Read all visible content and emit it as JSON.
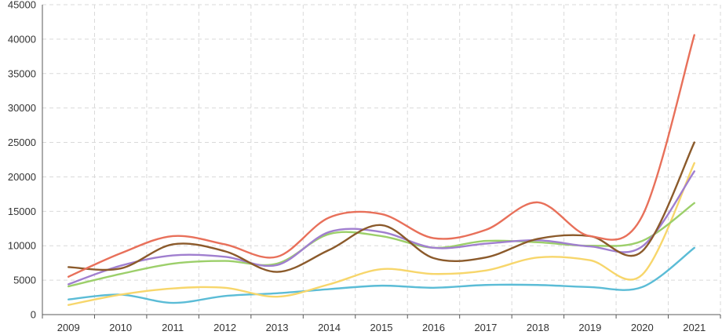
{
  "chart_data": {
    "type": "line",
    "title": "",
    "xlabel": "",
    "ylabel": "",
    "ylim": [
      0,
      45000
    ],
    "y_ticks": [
      0,
      5000,
      10000,
      15000,
      20000,
      25000,
      30000,
      35000,
      40000,
      45000
    ],
    "y_tick_labels": [
      "0",
      "5000",
      "10000",
      "15000",
      "20000",
      "25000",
      "30000",
      "35000",
      "40000",
      "45000"
    ],
    "categories": [
      "2009",
      "2010",
      "2011",
      "2012",
      "2013",
      "2014",
      "2015",
      "2016",
      "2017",
      "2018",
      "2019",
      "2020",
      "2021"
    ],
    "grid": true,
    "legend": "none",
    "series": [
      {
        "name": "orange-red",
        "color": "#e8705a",
        "values": [
          5500,
          8900,
          11400,
          10200,
          8400,
          14100,
          14600,
          11100,
          12300,
          16300,
          11400,
          14300,
          40600
        ]
      },
      {
        "name": "brown",
        "color": "#8b5a2b",
        "values": [
          6900,
          6700,
          10200,
          9200,
          6200,
          9400,
          13000,
          8200,
          8300,
          11000,
          11400,
          9200,
          25000
        ]
      },
      {
        "name": "purple",
        "color": "#a07fcf",
        "values": [
          4400,
          7100,
          8600,
          8400,
          7200,
          12000,
          12000,
          9700,
          10300,
          10800,
          9900,
          9900,
          20800
        ]
      },
      {
        "name": "green",
        "color": "#9ccf6a",
        "values": [
          4100,
          5900,
          7400,
          7800,
          7400,
          11700,
          11400,
          9700,
          10700,
          10500,
          10000,
          10700,
          16200
        ]
      },
      {
        "name": "yellow",
        "color": "#f7d66b",
        "values": [
          1400,
          2900,
          3800,
          3900,
          2600,
          4400,
          6600,
          5900,
          6400,
          8300,
          7900,
          5800,
          22000
        ]
      },
      {
        "name": "blue",
        "color": "#5bbcd6",
        "values": [
          2200,
          2900,
          1700,
          2700,
          3100,
          3700,
          4200,
          3900,
          4300,
          4300,
          4000,
          4000,
          9700
        ]
      }
    ]
  }
}
